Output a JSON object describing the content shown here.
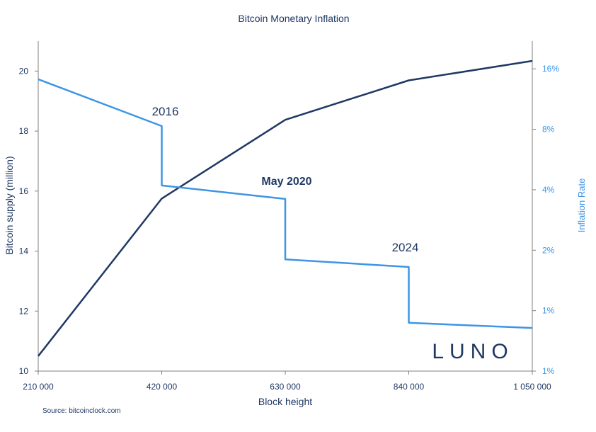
{
  "chart_data": {
    "type": "line",
    "title": "Bitcoin Monetary Inflation",
    "xlabel": "Block height",
    "ylabel_left": "Bitcoin supply (million)",
    "ylabel_right": "Inflation Rate",
    "x_ticks": [
      "210 000",
      "420 000",
      "630 000",
      "840 000",
      "1 050 000"
    ],
    "xlim": [
      210000,
      1050000
    ],
    "y_left_ticks": [
      "10",
      "12",
      "14",
      "16",
      "18",
      "20"
    ],
    "y_left_lim": [
      10,
      21
    ],
    "y_right_ticks": [
      "1%",
      "1%",
      "2%",
      "4%",
      "8%",
      "16%"
    ],
    "y_right_tick_values": [
      0.5,
      1,
      2,
      4,
      8,
      16
    ],
    "y_right_scale": "log2",
    "y_right_lim": [
      0.5,
      22
    ],
    "series": [
      {
        "axis": "left",
        "color": "#1f3864",
        "x": [
          210000,
          420000,
          630000,
          840000,
          1050000
        ],
        "y": [
          10.5,
          15.75,
          18.375,
          19.69,
          20.34
        ]
      },
      {
        "axis": "right",
        "color": "#3d95e6",
        "x": [
          210000,
          420000,
          420000,
          630000,
          630000,
          840000,
          840000,
          1050000
        ],
        "y": [
          14.2,
          8.3,
          4.2,
          3.6,
          1.8,
          1.65,
          0.87,
          0.82
        ]
      }
    ],
    "annotations": [
      {
        "text": "2016",
        "x": 420000,
        "bold": false
      },
      {
        "text": "May 2020",
        "x": 630000,
        "bold": true
      },
      {
        "text": "2024",
        "x": 840000,
        "bold": false
      }
    ],
    "source": "Source: bitcoinclock.com",
    "logo": "LUNO"
  }
}
